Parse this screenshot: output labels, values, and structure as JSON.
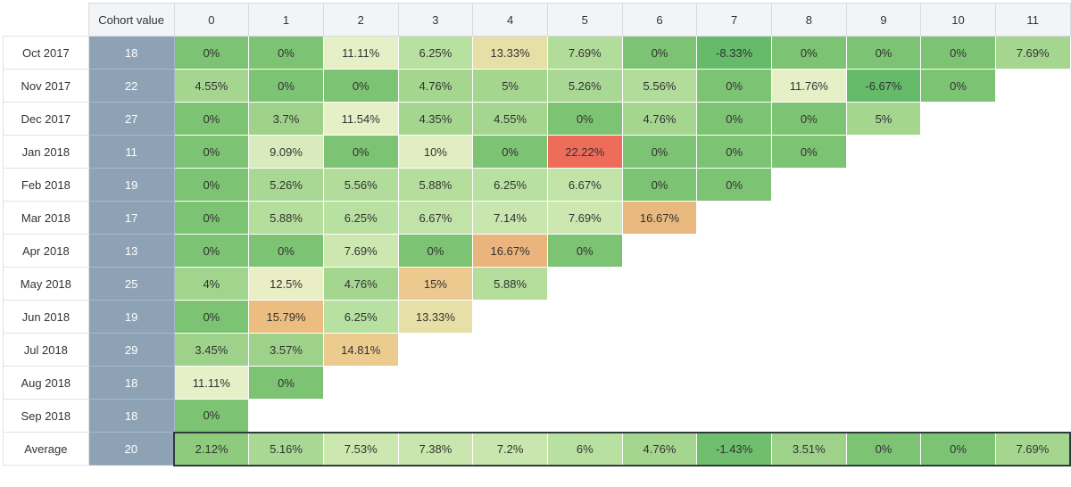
{
  "table": {
    "corner": "",
    "cohort_header": "Cohort value",
    "periods": [
      "0",
      "1",
      "2",
      "3",
      "4",
      "5",
      "6",
      "7",
      "8",
      "9",
      "10",
      "11"
    ],
    "rows": [
      {
        "label": "Oct 2017",
        "cohort": "18",
        "cells": [
          "0%",
          "0%",
          "11.11%",
          "6.25%",
          "13.33%",
          "7.69%",
          "0%",
          "-8.33%",
          "0%",
          "0%",
          "0%",
          "7.69%"
        ],
        "colors": [
          "#7cc373",
          "#7cc373",
          "#e6efc6",
          "#b8e0a0",
          "#e6dfa6",
          "#b2dc9a",
          "#7cc373",
          "#66bb6a",
          "#7cc373",
          "#7cc373",
          "#7cc373",
          "#a5d690"
        ]
      },
      {
        "label": "Nov 2017",
        "cohort": "22",
        "cells": [
          "4.55%",
          "0%",
          "0%",
          "4.76%",
          "5%",
          "5.26%",
          "5.56%",
          "0%",
          "11.76%",
          "-6.67%",
          "0%"
        ],
        "colors": [
          "#a5d690",
          "#7cc373",
          "#7cc373",
          "#a5d690",
          "#a5d690",
          "#a9d894",
          "#b2dc9a",
          "#7cc373",
          "#e6efc6",
          "#66bb6a",
          "#7cc373"
        ]
      },
      {
        "label": "Dec 2017",
        "cohort": "27",
        "cells": [
          "0%",
          "3.7%",
          "11.54%",
          "4.35%",
          "4.55%",
          "0%",
          "4.76%",
          "0%",
          "0%",
          "5%"
        ],
        "colors": [
          "#7cc373",
          "#9ed28b",
          "#e6efc6",
          "#a5d690",
          "#a5d690",
          "#7cc373",
          "#a5d690",
          "#7cc373",
          "#7cc373",
          "#a5d690"
        ]
      },
      {
        "label": "Jan 2018",
        "cohort": "11",
        "cells": [
          "0%",
          "9.09%",
          "0%",
          "10%",
          "0%",
          "22.22%",
          "0%",
          "0%",
          "0%"
        ],
        "colors": [
          "#7cc373",
          "#d9ebbd",
          "#7cc373",
          "#e2eec2",
          "#7cc373",
          "#ee6c5a",
          "#7cc373",
          "#7cc373",
          "#7cc373"
        ]
      },
      {
        "label": "Feb 2018",
        "cohort": "19",
        "cells": [
          "0%",
          "5.26%",
          "5.56%",
          "5.88%",
          "6.25%",
          "6.67%",
          "0%",
          "0%"
        ],
        "colors": [
          "#7cc373",
          "#a9d894",
          "#b2dc9a",
          "#b5dd9c",
          "#b8e0a0",
          "#c2e3a8",
          "#7cc373",
          "#7cc373"
        ]
      },
      {
        "label": "Mar 2018",
        "cohort": "17",
        "cells": [
          "0%",
          "5.88%",
          "6.25%",
          "6.67%",
          "7.14%",
          "7.69%",
          "16.67%"
        ],
        "colors": [
          "#7cc373",
          "#b5dd9c",
          "#b8e0a0",
          "#c2e3a8",
          "#c8e6ad",
          "#cce8b0",
          "#e8b87e"
        ]
      },
      {
        "label": "Apr 2018",
        "cohort": "13",
        "cells": [
          "0%",
          "0%",
          "7.69%",
          "0%",
          "16.67%",
          "0%"
        ],
        "colors": [
          "#7cc373",
          "#7cc373",
          "#cce8b0",
          "#7cc373",
          "#eab47c",
          "#7cc373"
        ]
      },
      {
        "label": "May 2018",
        "cohort": "25",
        "cells": [
          "4%",
          "12.5%",
          "4.76%",
          "15%",
          "5.88%"
        ],
        "colors": [
          "#a1d48d",
          "#eaeec4",
          "#a5d690",
          "#ecc98e",
          "#b5dd9c"
        ]
      },
      {
        "label": "Jun 2018",
        "cohort": "19",
        "cells": [
          "0%",
          "15.79%",
          "6.25%",
          "13.33%"
        ],
        "colors": [
          "#7cc373",
          "#ebbd81",
          "#b8e0a0",
          "#e6dfa6"
        ]
      },
      {
        "label": "Jul 2018",
        "cohort": "29",
        "cells": [
          "3.45%",
          "3.57%",
          "14.81%"
        ],
        "colors": [
          "#9ed28b",
          "#9ed28b",
          "#eccb8f"
        ]
      },
      {
        "label": "Aug 2018",
        "cohort": "18",
        "cells": [
          "11.11%",
          "0%"
        ],
        "colors": [
          "#e6efc6",
          "#7cc373"
        ]
      },
      {
        "label": "Sep 2018",
        "cohort": "18",
        "cells": [
          "0%"
        ],
        "colors": [
          "#7cc373"
        ]
      }
    ],
    "average": {
      "label": "Average",
      "cohort": "20",
      "cells": [
        "2.12%",
        "5.16%",
        "7.53%",
        "7.38%",
        "7.2%",
        "6%",
        "4.76%",
        "-1.43%",
        "3.51%",
        "0%",
        "0%",
        "7.69%"
      ],
      "colors": [
        "#8ecb7d",
        "#a9d894",
        "#cce8b0",
        "#c8e6ad",
        "#c8e6ad",
        "#b8e0a0",
        "#a5d690",
        "#6fbf6e",
        "#9ed28b",
        "#7cc373",
        "#7cc373",
        "#a5d690"
      ]
    }
  }
}
